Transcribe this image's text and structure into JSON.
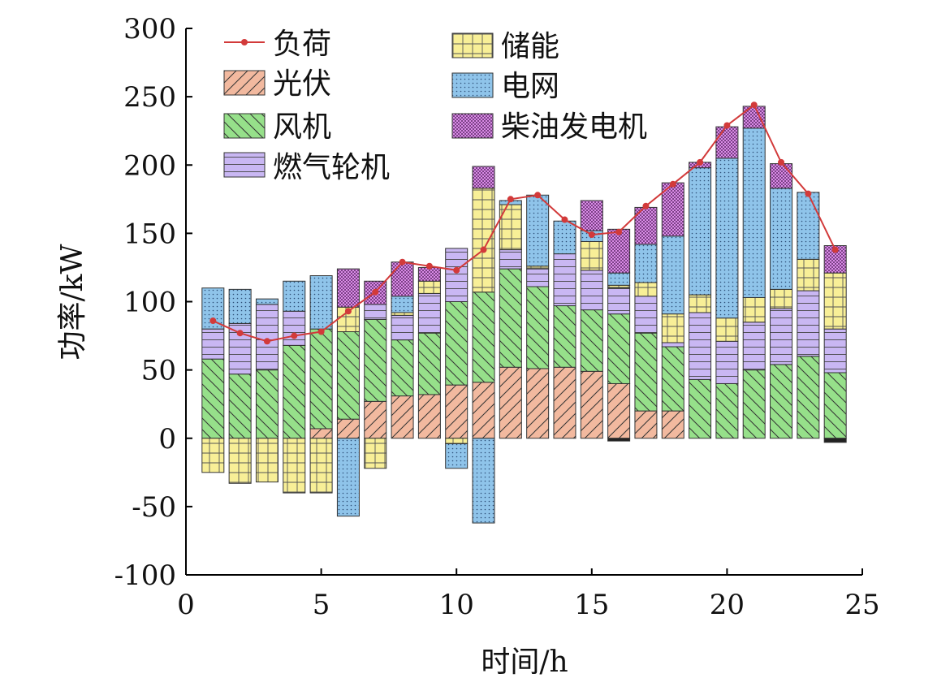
{
  "chart_data": {
    "type": "bar",
    "stacked": true,
    "xlabel": "时间/h",
    "ylabel": "功率/kW",
    "xlim": [
      0,
      25
    ],
    "ylim": [
      -100,
      300
    ],
    "xticks": [
      0,
      5,
      10,
      15,
      20,
      25
    ],
    "yticks": [
      -100,
      -50,
      0,
      50,
      100,
      150,
      200,
      250,
      300
    ],
    "x": [
      1,
      2,
      3,
      4,
      5,
      6,
      7,
      8,
      9,
      10,
      11,
      12,
      13,
      14,
      15,
      16,
      17,
      18,
      19,
      20,
      21,
      22,
      23,
      24
    ],
    "grid": false,
    "legend_position": "top-left, two columns",
    "series": [
      {
        "name": "光伏",
        "kind": "bar",
        "color": "#f2b99f",
        "pattern": "diag-right",
        "values": [
          0,
          0,
          0,
          0,
          7,
          14,
          27,
          31,
          32,
          39,
          41,
          52,
          51,
          52,
          49,
          40,
          20,
          20,
          0,
          0,
          0,
          0,
          0,
          0
        ]
      },
      {
        "name": "风机",
        "kind": "bar",
        "color": "#96e08a",
        "pattern": "diag-left",
        "values": [
          58,
          47,
          50,
          68,
          73,
          64,
          60,
          41,
          45,
          61,
          66,
          72,
          60,
          45,
          45,
          51,
          57,
          47,
          43,
          40,
          50,
          54,
          60,
          48
        ]
      },
      {
        "name": "燃气轮机",
        "kind": "bar",
        "color": "#c9b7f3",
        "pattern": "horiz",
        "values": [
          22,
          37,
          48,
          25,
          0,
          0,
          11,
          18,
          29,
          39,
          0,
          14,
          13,
          38,
          29,
          19,
          27,
          3,
          49,
          31,
          35,
          41,
          48,
          32
        ]
      },
      {
        "name": "储能",
        "kind": "bar",
        "color": "#f8ef97",
        "pattern": "grid",
        "values": [
          -25,
          -33,
          -32,
          -40,
          -40,
          18,
          -22,
          2,
          9,
          -4,
          76,
          33,
          2,
          0,
          21,
          2,
          10,
          21,
          13,
          17,
          18,
          14,
          23,
          41
        ]
      },
      {
        "name": "电网",
        "kind": "bar",
        "color": "#8fc4ea",
        "pattern": "dots",
        "values": [
          30,
          25,
          4,
          22,
          39,
          -57,
          0,
          12,
          0,
          -18,
          -62,
          3,
          52,
          24,
          8,
          9,
          28,
          57,
          93,
          117,
          124,
          74,
          49,
          0
        ]
      },
      {
        "name": "柴油发电机",
        "kind": "bar",
        "color": "#d98be6",
        "pattern": "dense",
        "values": [
          0,
          0,
          0,
          0,
          0,
          28,
          17,
          25,
          10,
          0,
          16,
          0,
          0,
          0,
          22,
          32,
          27,
          39,
          4,
          23,
          16,
          18,
          0,
          20
        ]
      },
      {
        "name": "负荷",
        "kind": "line",
        "color": "#d23a3a",
        "values": [
          86,
          77,
          71,
          75,
          78,
          93,
          107,
          129,
          126,
          123,
          138,
          175,
          178,
          160,
          149,
          151,
          170,
          186,
          202,
          229,
          244,
          202,
          179,
          138
        ]
      }
    ],
    "extra_negative": {
      "note": "",
      "values": [
        0,
        0,
        0,
        0,
        0,
        0,
        0,
        0,
        0,
        0,
        0,
        0,
        0,
        0,
        0,
        -2,
        0,
        0,
        0,
        0,
        0,
        0,
        0,
        -3
      ]
    }
  },
  "legend_labels": {
    "load": "负荷",
    "pv": "光伏",
    "wind": "风机",
    "gas": "燃气轮机",
    "storage": "储能",
    "grid": "电网",
    "diesel": "柴油发电机"
  }
}
